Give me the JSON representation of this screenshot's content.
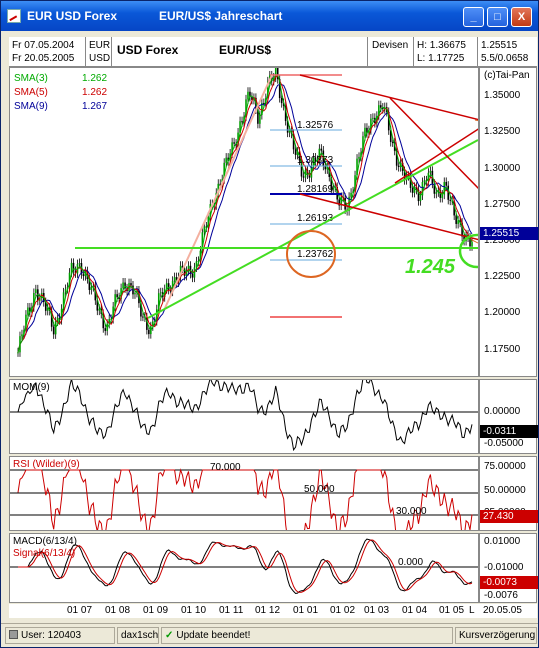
{
  "window": {
    "title_left": "EUR USD Forex",
    "title_right": "EUR/US$  Jahreschart",
    "buttons": [
      "_",
      "□",
      "X"
    ]
  },
  "header": {
    "date_from": "Fr 07.05.2004",
    "date_to": "Fr 20.05.2005",
    "cur1": "EUR",
    "cur2": "USD",
    "name": "USD Forex",
    "pair": "EUR/US$",
    "exchange": "Devisen",
    "high": "H: 1.36675",
    "low": "L: 1.17725",
    "last": "1.25515",
    "change": "5.5/0.0658",
    "copyright": "(c)Tai-Pan"
  },
  "legend": [
    {
      "name": "SMA(3)",
      "value": "1.262",
      "color": "#00aa00"
    },
    {
      "name": "SMA(5)",
      "value": "1.262",
      "color": "#cc0000"
    },
    {
      "name": "SMA(9)",
      "value": "1.267",
      "color": "#000099"
    }
  ],
  "fib_levels": [
    "1.32576",
    "1.30373",
    "1.28169",
    "1.26193",
    "1.23762"
  ],
  "annotation": "1.245",
  "colors": {
    "green": "#44dd22",
    "red": "#cc0000",
    "orange": "#dd6622",
    "up": "#00a000"
  },
  "panels": {
    "mom": {
      "title": "MOM(9)",
      "ticks": [
        "0.00000",
        "-0.05000"
      ],
      "current": "-0.0311"
    },
    "rsi": {
      "title": "RSI (Wilder)(9)",
      "ticks": [
        "75.00000",
        "50.00000",
        "25.00000"
      ],
      "levels": [
        "70.000",
        "50.000",
        "30.000"
      ],
      "current": "27.430"
    },
    "macd": {
      "title": "MACD(6/13/4)",
      "signal": "Signal(6/13/4)",
      "ticks": [
        "0.01000",
        "-0.01000"
      ],
      "zero": "0.000",
      "current1": "-0.0073",
      "current2": "-0.0076"
    }
  },
  "chart_data": {
    "type": "line",
    "y_ticks": [
      "1.35000",
      "1.32500",
      "1.30000",
      "1.27500",
      "1.25000",
      "1.22500",
      "1.20000",
      "1.17500"
    ],
    "ylim": [
      1.165,
      1.37
    ],
    "x_ticks": [
      "01 07",
      "01 08",
      "01 09",
      "01 10",
      "01 11",
      "01 12",
      "01 01",
      "01 02",
      "01 03",
      "01 04",
      "01 05"
    ],
    "x_end": "L",
    "x_date": "20.05.05",
    "current_value": "1.25515",
    "series": [
      {
        "values": [
          1.182,
          1.205,
          1.225,
          1.212,
          1.198,
          1.215,
          1.235,
          1.242,
          1.225,
          1.212,
          1.198,
          1.215,
          1.23,
          1.222,
          1.205,
          1.198,
          1.218,
          1.228,
          1.232,
          1.235,
          1.24,
          1.262,
          1.285,
          1.3,
          1.315,
          1.335,
          1.352,
          1.338,
          1.358,
          1.365,
          1.34,
          1.315,
          1.3,
          1.305,
          1.312,
          1.3,
          1.28,
          1.278,
          1.305,
          1.325,
          1.34,
          1.345,
          1.32,
          1.305,
          1.29,
          1.288,
          1.3,
          1.285,
          1.295,
          1.27,
          1.262,
          1.255
        ]
      }
    ]
  }
}
